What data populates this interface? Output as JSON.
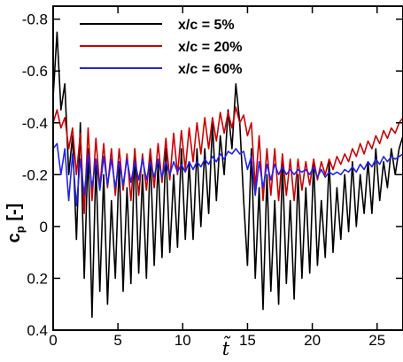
{
  "chart_data": {
    "type": "line",
    "xlabel": "t̃",
    "ylabel": "c",
    "ylabel_sub": "p",
    "ylabel_unit": " [-]",
    "xlim": [
      0,
      27
    ],
    "ylim": [
      0.4,
      -0.85
    ],
    "y_inverted": true,
    "grid": false,
    "legend_position": "top-center",
    "x_ticks": [
      {
        "v": 0,
        "label": "0"
      },
      {
        "v": 5,
        "label": "5"
      },
      {
        "v": 10,
        "label": "10"
      },
      {
        "v": 15,
        "label": "15"
      },
      {
        "v": 20,
        "label": "20"
      },
      {
        "v": 25,
        "label": "25"
      }
    ],
    "y_ticks": [
      {
        "v": -0.8,
        "label": "-0.8"
      },
      {
        "v": -0.6,
        "label": "-0.6"
      },
      {
        "v": -0.4,
        "label": "-0.4"
      },
      {
        "v": -0.2,
        "label": "-0.2"
      },
      {
        "v": 0,
        "label": "0"
      },
      {
        "v": 0.2,
        "label": "0.2"
      },
      {
        "v": 0.4,
        "label": "0.4"
      }
    ],
    "series": [
      {
        "name": "x/c = 5%",
        "color": "#000000",
        "x": [
          0.0,
          0.3,
          0.6,
          0.9,
          1.2,
          1.5,
          1.8,
          2.1,
          2.4,
          2.7,
          3.0,
          3.3,
          3.6,
          3.9,
          4.2,
          4.5,
          4.8,
          5.1,
          5.4,
          5.7,
          6.0,
          6.3,
          6.6,
          6.9,
          7.2,
          7.5,
          7.8,
          8.1,
          8.4,
          8.7,
          9.0,
          9.3,
          9.6,
          9.9,
          10.2,
          10.5,
          10.8,
          11.1,
          11.4,
          11.7,
          12.0,
          12.3,
          12.6,
          12.9,
          13.2,
          13.5,
          13.8,
          14.1,
          14.4,
          14.7,
          15.0,
          15.3,
          15.6,
          15.9,
          16.2,
          16.5,
          16.8,
          17.1,
          17.4,
          17.7,
          18.0,
          18.3,
          18.6,
          18.9,
          19.2,
          19.5,
          19.8,
          20.1,
          20.4,
          20.7,
          21.0,
          21.3,
          21.6,
          21.9,
          22.2,
          22.5,
          22.8,
          23.1,
          23.4,
          23.7,
          24.0,
          24.3,
          24.6,
          24.9,
          25.2,
          25.5,
          25.8,
          26.1,
          26.4,
          26.7,
          27.0
        ],
        "values": [
          -0.5,
          -0.75,
          -0.45,
          -0.55,
          -0.2,
          -0.35,
          0.05,
          -0.4,
          0.2,
          -0.3,
          0.35,
          -0.25,
          0.25,
          -0.2,
          0.3,
          -0.1,
          0.2,
          -0.25,
          0.25,
          -0.15,
          0.22,
          -0.3,
          0.18,
          -0.2,
          0.2,
          -0.28,
          0.15,
          -0.25,
          0.12,
          -0.3,
          0.1,
          -0.2,
          0.08,
          -0.3,
          0.05,
          -0.25,
          0.05,
          -0.3,
          0.0,
          -0.3,
          -0.05,
          -0.4,
          -0.1,
          -0.35,
          -0.2,
          -0.45,
          -0.3,
          -0.55,
          -0.4,
          -0.1,
          0.15,
          -0.3,
          0.2,
          -0.15,
          0.32,
          -0.2,
          0.25,
          -0.1,
          0.3,
          -0.25,
          0.22,
          -0.1,
          0.28,
          -0.2,
          0.2,
          -0.15,
          0.18,
          -0.25,
          0.15,
          -0.1,
          0.12,
          -0.25,
          0.1,
          -0.15,
          0.05,
          -0.2,
          0.02,
          -0.25,
          0.0,
          -0.2,
          -0.05,
          -0.25,
          -0.05,
          -0.3,
          -0.1,
          -0.25,
          -0.15,
          -0.3,
          -0.2,
          -0.3,
          -0.35
        ]
      },
      {
        "name": "x/c = 20%",
        "color": "#cc0000",
        "x": [
          0.0,
          0.3,
          0.6,
          0.9,
          1.2,
          1.5,
          1.8,
          2.1,
          2.4,
          2.7,
          3.0,
          3.3,
          3.6,
          3.9,
          4.2,
          4.5,
          4.8,
          5.1,
          5.4,
          5.7,
          6.0,
          6.3,
          6.6,
          6.9,
          7.2,
          7.5,
          7.8,
          8.1,
          8.4,
          8.7,
          9.0,
          9.3,
          9.6,
          9.9,
          10.2,
          10.5,
          10.8,
          11.1,
          11.4,
          11.7,
          12.0,
          12.3,
          12.6,
          12.9,
          13.2,
          13.5,
          13.8,
          14.1,
          14.4,
          14.7,
          15.0,
          15.3,
          15.6,
          15.9,
          16.2,
          16.5,
          16.8,
          17.1,
          17.4,
          17.7,
          18.0,
          18.3,
          18.6,
          18.9,
          19.2,
          19.5,
          19.8,
          20.1,
          20.4,
          20.7,
          21.0,
          21.3,
          21.6,
          21.9,
          22.2,
          22.5,
          22.8,
          23.1,
          23.4,
          23.7,
          24.0,
          24.3,
          24.6,
          24.9,
          25.2,
          25.5,
          25.8,
          26.1,
          26.4,
          26.7,
          27.0
        ],
        "values": [
          -0.4,
          -0.45,
          -0.38,
          -0.42,
          -0.3,
          -0.38,
          -0.2,
          -0.36,
          -0.05,
          -0.38,
          -0.1,
          -0.34,
          -0.15,
          -0.32,
          -0.15,
          -0.3,
          -0.12,
          -0.3,
          -0.14,
          -0.28,
          -0.1,
          -0.3,
          -0.12,
          -0.28,
          -0.14,
          -0.3,
          -0.15,
          -0.32,
          -0.17,
          -0.34,
          -0.18,
          -0.36,
          -0.2,
          -0.37,
          -0.22,
          -0.38,
          -0.25,
          -0.4,
          -0.28,
          -0.42,
          -0.3,
          -0.42,
          -0.33,
          -0.44,
          -0.36,
          -0.44,
          -0.38,
          -0.46,
          -0.4,
          -0.43,
          -0.35,
          -0.4,
          -0.15,
          -0.35,
          -0.1,
          -0.3,
          -0.12,
          -0.3,
          -0.1,
          -0.28,
          -0.12,
          -0.26,
          -0.1,
          -0.26,
          -0.14,
          -0.25,
          -0.16,
          -0.26,
          -0.18,
          -0.25,
          -0.2,
          -0.26,
          -0.22,
          -0.27,
          -0.24,
          -0.28,
          -0.25,
          -0.3,
          -0.27,
          -0.32,
          -0.28,
          -0.33,
          -0.3,
          -0.35,
          -0.32,
          -0.37,
          -0.34,
          -0.38,
          -0.36,
          -0.4,
          -0.42
        ]
      },
      {
        "name": "x/c = 60%",
        "color": "#2222ee",
        "x": [
          0.0,
          0.3,
          0.6,
          0.9,
          1.2,
          1.5,
          1.8,
          2.1,
          2.4,
          2.7,
          3.0,
          3.3,
          3.6,
          3.9,
          4.2,
          4.5,
          4.8,
          5.1,
          5.4,
          5.7,
          6.0,
          6.3,
          6.6,
          6.9,
          7.2,
          7.5,
          7.8,
          8.1,
          8.4,
          8.7,
          9.0,
          9.3,
          9.6,
          9.9,
          10.2,
          10.5,
          10.8,
          11.1,
          11.4,
          11.7,
          12.0,
          12.3,
          12.6,
          12.9,
          13.2,
          13.5,
          13.8,
          14.1,
          14.4,
          14.7,
          15.0,
          15.3,
          15.6,
          15.9,
          16.2,
          16.5,
          16.8,
          17.1,
          17.4,
          17.7,
          18.0,
          18.3,
          18.6,
          18.9,
          19.2,
          19.5,
          19.8,
          20.1,
          20.4,
          20.7,
          21.0,
          21.3,
          21.6,
          21.9,
          22.2,
          22.5,
          22.8,
          23.1,
          23.4,
          23.7,
          24.0,
          24.3,
          24.6,
          24.9,
          25.2,
          25.5,
          25.8,
          26.1,
          26.4,
          26.7,
          27.0
        ],
        "values": [
          -0.3,
          -0.32,
          -0.2,
          -0.3,
          -0.1,
          -0.28,
          -0.08,
          -0.26,
          -0.12,
          -0.28,
          -0.15,
          -0.26,
          -0.14,
          -0.27,
          -0.16,
          -0.26,
          -0.15,
          -0.25,
          -0.16,
          -0.26,
          -0.17,
          -0.25,
          -0.18,
          -0.26,
          -0.18,
          -0.25,
          -0.19,
          -0.26,
          -0.19,
          -0.25,
          -0.2,
          -0.25,
          -0.21,
          -0.24,
          -0.21,
          -0.25,
          -0.22,
          -0.25,
          -0.23,
          -0.26,
          -0.24,
          -0.27,
          -0.25,
          -0.28,
          -0.26,
          -0.29,
          -0.28,
          -0.3,
          -0.28,
          -0.29,
          -0.22,
          -0.27,
          -0.12,
          -0.25,
          -0.15,
          -0.24,
          -0.18,
          -0.24,
          -0.2,
          -0.23,
          -0.2,
          -0.22,
          -0.2,
          -0.22,
          -0.21,
          -0.22,
          -0.2,
          -0.23,
          -0.19,
          -0.22,
          -0.19,
          -0.21,
          -0.2,
          -0.21,
          -0.2,
          -0.22,
          -0.21,
          -0.23,
          -0.21,
          -0.24,
          -0.22,
          -0.25,
          -0.23,
          -0.26,
          -0.24,
          -0.27,
          -0.25,
          -0.27,
          -0.26,
          -0.27,
          -0.28
        ]
      }
    ]
  }
}
